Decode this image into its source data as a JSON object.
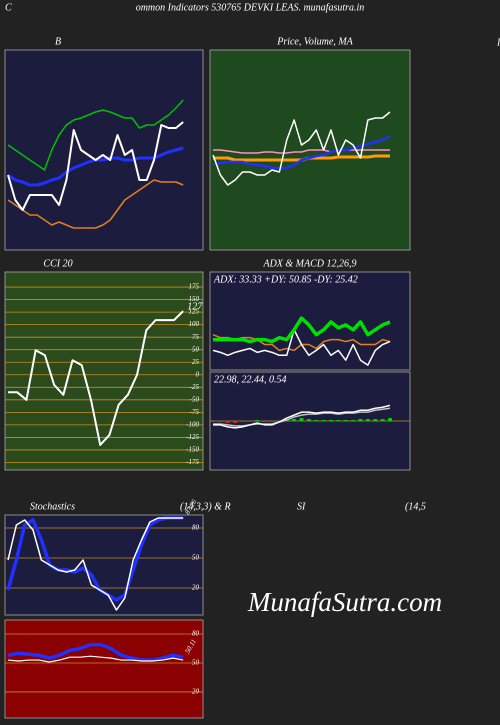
{
  "header": {
    "corner": "C",
    "title": "ommon  Indicators 530765 DEVKI LEAS. munafasutra.in",
    "cut_title": "I",
    "stoch_titles": [
      "Stochastics",
      "(14,3,3) & R",
      "SI",
      "(14,5"
    ]
  },
  "watermark": "MunafaSutra.com",
  "chart_data": [
    {
      "type": "line",
      "title": "B",
      "background": "#1c1d3e",
      "ylim": [
        0,
        100
      ],
      "series": [
        {
          "color": "#00c000",
          "values": [
            52.5,
            50,
            47.5,
            45,
            42.5,
            40,
            50,
            57.5,
            62.5,
            65,
            66,
            67.5,
            69,
            70,
            69,
            67.5,
            66,
            66,
            61,
            62.5,
            62.5,
            65,
            67.5,
            71,
            75
          ]
        },
        {
          "color": "#e08020",
          "values": [
            25,
            22.5,
            20,
            17.5,
            17.5,
            15,
            12.5,
            14,
            12.5,
            11,
            11,
            11,
            11,
            12.5,
            15,
            20,
            25,
            27.5,
            30,
            32.5,
            35,
            34,
            34,
            34,
            32.5
          ]
        },
        {
          "color": "#2030ff",
          "values": [
            37.5,
            35,
            34,
            32.5,
            32.5,
            33.5,
            35,
            36,
            39,
            41,
            42.5,
            44,
            45,
            45,
            46,
            46,
            45,
            45,
            46,
            46,
            46,
            47.5,
            49,
            50,
            51
          ]
        },
        {
          "color": "#ffffff",
          "values": [
            37.5,
            25,
            20,
            27.5,
            27.5,
            27.5,
            27.5,
            22.5,
            35,
            60,
            50,
            47.5,
            45,
            47.5,
            45,
            57.5,
            47.5,
            50,
            35,
            35,
            45,
            62.5,
            61,
            61,
            64
          ]
        }
      ]
    },
    {
      "type": "line",
      "title": "Price, Volume, MA",
      "background": "#1f4a1f",
      "ylim": [
        0,
        100
      ],
      "series": [
        {
          "color": "#ff90c0",
          "values": [
            50,
            50,
            49.5,
            49,
            48.5,
            48.5,
            48.5,
            49,
            49,
            48.5,
            48.5,
            49,
            49,
            50,
            50,
            50,
            49,
            50,
            50,
            50,
            50,
            50,
            50,
            50,
            50
          ]
        },
        {
          "color": "#ff9a00",
          "values": [
            46,
            46,
            46,
            45,
            45,
            45,
            45,
            45,
            45,
            45,
            45,
            45,
            45,
            46,
            46,
            46,
            46,
            46.5,
            46.5,
            46.5,
            46.5,
            46.5,
            47,
            47,
            47
          ]
        },
        {
          "color": "#2030ff",
          "values": [
            42.5,
            43.5,
            44,
            44,
            44,
            43,
            42.5,
            42,
            41,
            41,
            41,
            42.5,
            45,
            46,
            47,
            47.5,
            49,
            50,
            50,
            51,
            52,
            53,
            54,
            55,
            57
          ]
        },
        {
          "color": "#ffffff",
          "values": [
            47.5,
            37.5,
            32.5,
            35,
            39,
            39,
            37.5,
            37.5,
            40,
            39,
            55,
            65,
            52.5,
            55,
            60,
            50,
            60,
            47.5,
            55,
            52.5,
            46,
            65,
            66,
            66,
            69
          ]
        }
      ]
    },
    {
      "type": "line",
      "title": "CCI 20",
      "background": "#2b4b1d",
      "grid_color": "#c8901e",
      "ylim": [
        -190,
        205
      ],
      "yticks": [
        175,
        150,
        125,
        100,
        75,
        50,
        25,
        0,
        -25,
        -50,
        -75,
        -100,
        -125,
        -150,
        -175
      ],
      "end_label": "127",
      "series": [
        {
          "color": "#ffffff",
          "values": [
            -35,
            -35,
            -50,
            49,
            39,
            -20,
            -40,
            29,
            19,
            -50,
            -140,
            -120,
            -60,
            -40,
            0,
            89,
            109,
            109,
            109,
            127
          ]
        }
      ]
    },
    {
      "type": "line",
      "title": "ADX  & MACD 12,26,9",
      "subtitle": "ADX: 33.33  +DY: 50.85 -DY: 25.42",
      "background": "#1c1d3e",
      "ylim": [
        0,
        100
      ],
      "series": [
        {
          "color": "#e08020",
          "values": [
            36,
            33,
            33,
            31,
            33,
            33,
            31,
            26,
            26,
            20,
            22,
            20,
            26,
            26,
            22,
            29,
            31,
            31,
            29,
            31,
            26,
            26,
            26,
            31,
            29
          ]
        },
        {
          "color": "#ffffff",
          "values": [
            20,
            18,
            15,
            18,
            20,
            22,
            18,
            20,
            18,
            15,
            15,
            41,
            26,
            15,
            20,
            26,
            15,
            20,
            10,
            26,
            10,
            5,
            20,
            26,
            29
          ]
        },
        {
          "color": "#00e000",
          "values": [
            31,
            31,
            31,
            31,
            31,
            29,
            31,
            31,
            29,
            33,
            31,
            41,
            53,
            46,
            36,
            41,
            49,
            43,
            46,
            41,
            49,
            36,
            41,
            46,
            49
          ]
        }
      ]
    },
    {
      "type": "line",
      "subtitle": "22.98,  22.44,  0.54",
      "background": "#1c1d3e",
      "ylim": [
        -50,
        50
      ],
      "zero_color": "#c8901e",
      "histogram": {
        "up_color": "#00d000",
        "down_color": "#e02020",
        "values": [
          -1,
          -1,
          -2,
          -2,
          -1,
          0,
          1,
          -1,
          -1,
          0,
          2,
          2,
          3,
          2,
          1,
          1,
          1,
          1,
          1,
          1,
          2,
          2,
          2,
          2,
          3
        ]
      },
      "series": [
        {
          "color": "#c0c0c0",
          "values": [
            -3,
            -3,
            -4,
            -5,
            -5,
            -4,
            -3,
            -3,
            -3,
            -1,
            1,
            4,
            6,
            7,
            7,
            8,
            8,
            7,
            8,
            8,
            9,
            9,
            11,
            12,
            13
          ]
        },
        {
          "color": "#ffffff",
          "values": [
            -4,
            -4,
            -6,
            -7,
            -6,
            -4,
            -2,
            -4,
            -4,
            -1,
            3,
            6,
            9,
            9,
            8,
            9,
            9,
            8,
            9,
            9,
            11,
            11,
            13,
            14,
            16
          ]
        }
      ]
    },
    {
      "type": "line",
      "background": "#1c1d3e",
      "grid_color": "#c8901e",
      "ylim": [
        -7,
        93
      ],
      "yticks": [
        80,
        50,
        20
      ],
      "end_label": "87.26",
      "series": [
        {
          "color": "#2030ff",
          "values": [
            18,
            48,
            83,
            88,
            68,
            43,
            38,
            38,
            36,
            40,
            33,
            18,
            13,
            8,
            13,
            38,
            63,
            83,
            88,
            90,
            90,
            90
          ]
        },
        {
          "color": "#ffffff",
          "values": [
            48,
            83,
            88,
            78,
            48,
            43,
            38,
            36,
            38,
            48,
            23,
            18,
            13,
            -2,
            10,
            48,
            68,
            86,
            90,
            90,
            90,
            90
          ]
        }
      ]
    },
    {
      "type": "line",
      "background": "#8b0000",
      "grid_color": "#c8901e",
      "ylim": [
        -7,
        94.5
      ],
      "yticks": [
        80,
        50,
        20
      ],
      "end_label": "50.11",
      "series": [
        {
          "color": "#2030ff",
          "values": [
            58,
            60,
            59,
            58,
            55,
            58,
            63,
            65,
            69,
            69,
            65,
            58,
            55,
            53,
            53,
            55,
            58,
            56
          ]
        },
        {
          "color": "#ffffff",
          "values": [
            53,
            52,
            53,
            53,
            51,
            53,
            56,
            56,
            57,
            56,
            55,
            53,
            53,
            52,
            52,
            53,
            55,
            53
          ]
        }
      ]
    }
  ]
}
